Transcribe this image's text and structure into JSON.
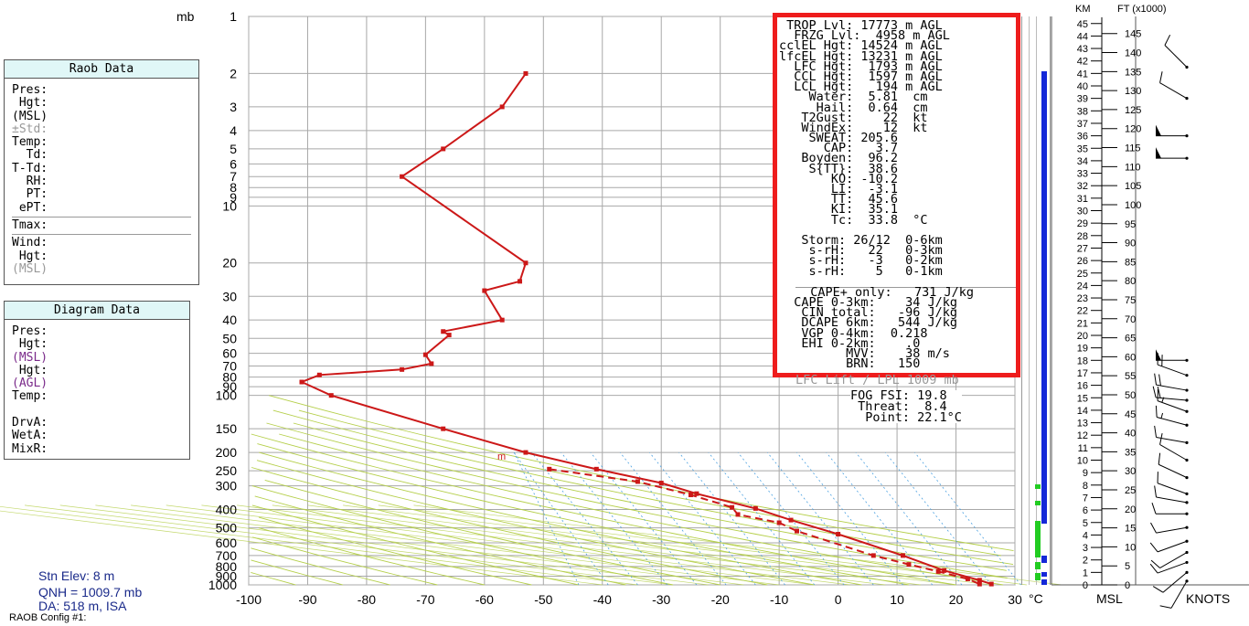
{
  "raob_panel": {
    "title": "Raob Data",
    "rows": [
      "Pres:",
      " Hgt:",
      "(MSL)",
      "±Std:",
      "Temp:",
      "  Td:",
      "T-Td:",
      "  RH:",
      "  PT:",
      " ePT:"
    ],
    "tmax": "Tmax:",
    "wind_rows": [
      "Wind:",
      " Hgt:",
      "(MSL)"
    ]
  },
  "diagram_panel": {
    "title": "Diagram Data",
    "rows": [
      "Pres:",
      " Hgt:",
      "(MSL)",
      " Hgt:",
      "(AGL)",
      "Temp:",
      "",
      "DrvA:",
      "WetA:",
      "MixR:"
    ]
  },
  "station": {
    "elev": "Stn Elev: 8 m",
    "qnh": "QNH = 1009.7 mb",
    "da": "DA: 518 m, ISA",
    "config": "RAOB Config #1:"
  },
  "indices": {
    "rows": [
      " TROP Lvl: 17773 m AGL",
      "  FRZG Lvl:  4958 m AGL",
      "cclEL Hgt: 14524 m AGL",
      "lfcEL Hgt: 13231 m AGL",
      "  LFC Hgt:  1793 m AGL",
      "  CCL Hgt:  1597 m AGL",
      "  LCL Hgt:   194 m AGL",
      "    Water:  5.81  cm",
      "     Hail:  0.64  cm",
      "   T2Gust:    22  kt",
      "   WindEx:    12  kt",
      "    SWEAT: 205.6",
      "      CAP:   3.7",
      "   Boyden:  96.2",
      "    S{TT}:  38.6",
      "       KO: -10.2",
      "       LI:  -3.1",
      "       TT:  45.6",
      "       KI:  35.1",
      "       Tc:  33.8  °C",
      "",
      "   Storm: 26/12  0-6km",
      "    s-rH:   22   0-3km",
      "    s-rH:   -3   0-2km",
      "    s-rH:    5   0-1km",
      "",
      "  CAPE+ only:   731 J/kg",
      "  CAPE 0-3km:    34 J/kg",
      "   CIN total:   -96 J/kg",
      "   DCAPE 6km:   544 J/kg",
      "   VGP 0-4km:  0.218",
      "   EHI 0-2km:    .0",
      "         MVV:    38 m/s",
      "         BRN:   150"
    ]
  },
  "lfc_lift": "LFC Lift / LPL 1009 mb",
  "fog": {
    "rows": [
      "FOG FSI: 19.8",
      " Threat:  8.4",
      "  Point: 22.1°C"
    ]
  },
  "mixing_marker": "m",
  "right_axes": {
    "km_title": "KM",
    "ft_title": "FT (x1000)",
    "msl_label": "MSL",
    "knots_label": "KNOTS",
    "km_ticks": [
      0,
      1,
      2,
      3,
      4,
      5,
      6,
      7,
      8,
      9,
      10,
      11,
      12,
      13,
      14,
      15,
      16,
      17,
      18,
      19,
      20,
      21,
      22,
      23,
      24,
      25,
      26,
      27,
      28,
      29,
      30,
      31,
      32,
      33,
      34,
      35,
      36,
      37,
      38,
      39,
      40,
      41,
      42,
      43,
      44,
      45
    ],
    "ft_ticks": [
      0,
      5,
      10,
      15,
      20,
      25,
      30,
      35,
      40,
      45,
      50,
      55,
      60,
      65,
      70,
      75,
      80,
      85,
      90,
      95,
      100,
      105,
      110,
      115,
      120,
      125,
      130,
      135,
      140,
      145
    ],
    "wind_barbs": [
      {
        "km": 41.5,
        "dir": 315,
        "speed": 10
      },
      {
        "km": 39.0,
        "dir": 300,
        "speed": 10
      },
      {
        "km": 36.0,
        "dir": 270,
        "speed": 50
      },
      {
        "km": 34.2,
        "dir": 270,
        "speed": 50
      },
      {
        "km": 18.0,
        "dir": 270,
        "speed": 50
      },
      {
        "km": 16.8,
        "dir": 290,
        "speed": 20
      },
      {
        "km": 15.6,
        "dir": 280,
        "speed": 20
      },
      {
        "km": 14.8,
        "dir": 275,
        "speed": 20
      },
      {
        "km": 13.9,
        "dir": 290,
        "speed": 15
      },
      {
        "km": 12.8,
        "dir": 285,
        "speed": 15
      },
      {
        "km": 11.4,
        "dir": 280,
        "speed": 10
      },
      {
        "km": 10.0,
        "dir": 300,
        "speed": 10
      },
      {
        "km": 8.6,
        "dir": 295,
        "speed": 10
      },
      {
        "km": 7.3,
        "dir": 290,
        "speed": 10
      },
      {
        "km": 6.6,
        "dir": 280,
        "speed": 10
      },
      {
        "km": 5.7,
        "dir": 270,
        "speed": 10
      },
      {
        "km": 4.6,
        "dir": 260,
        "speed": 10
      },
      {
        "km": 3.5,
        "dir": 250,
        "speed": 10
      },
      {
        "km": 2.6,
        "dir": 240,
        "speed": 10
      },
      {
        "km": 1.8,
        "dir": 250,
        "speed": 10
      },
      {
        "km": 1.0,
        "dir": 230,
        "speed": 10
      },
      {
        "km": 0.3,
        "dir": 210,
        "speed": 10
      }
    ]
  },
  "colors": {
    "temp": "#cc1818",
    "grid": "#a8a8a8",
    "dry_adiabat": "#b5cf4a",
    "mix_ratio": "#4aa0e0",
    "highlight": "#ee1c1c",
    "bar_blue": "#1428d8",
    "bar_green": "#22cc22"
  },
  "chart_data": {
    "type": "line",
    "title": "",
    "x_unit": "°C",
    "xlim": [
      -100,
      30
    ],
    "y_unit": "mb",
    "y_scale": "log-reversed",
    "ylim": [
      1000,
      1
    ],
    "x_ticks": [
      -100,
      -90,
      -80,
      -70,
      -60,
      -50,
      -40,
      -30,
      -20,
      -10,
      0,
      10,
      20,
      30
    ],
    "y_ticks": [
      1,
      2,
      3,
      4,
      5,
      6,
      7,
      8,
      9,
      10,
      20,
      30,
      40,
      50,
      60,
      70,
      80,
      90,
      100,
      150,
      200,
      250,
      300,
      400,
      500,
      600,
      700,
      800,
      900,
      1000
    ],
    "series": [
      {
        "style": "solid",
        "points": [
          [
            -53,
            2
          ],
          [
            -57,
            3
          ],
          [
            -67,
            5
          ],
          [
            -74,
            7
          ],
          [
            -53,
            20
          ],
          [
            -54,
            25
          ],
          [
            -60,
            28
          ],
          [
            -57,
            40
          ],
          [
            -67,
            46
          ],
          [
            -66,
            48
          ],
          [
            -70,
            61
          ],
          [
            -69,
            68
          ],
          [
            -74,
            73
          ],
          [
            -88,
            78
          ],
          [
            -91,
            85
          ],
          [
            -86,
            100
          ],
          [
            -67,
            150
          ],
          [
            -53,
            200
          ],
          [
            -41,
            245
          ],
          [
            -30,
            290
          ],
          [
            -24,
            330
          ],
          [
            -14,
            395
          ],
          [
            -8,
            455
          ],
          [
            0,
            540
          ],
          [
            11,
            700
          ],
          [
            18,
            840
          ],
          [
            24,
            945
          ],
          [
            26,
            990
          ]
        ]
      },
      {
        "style": "dashed",
        "points": [
          [
            -49,
            245
          ],
          [
            -34,
            285
          ],
          [
            -25,
            335
          ],
          [
            -18,
            390
          ],
          [
            -17,
            425
          ],
          [
            -10,
            470
          ],
          [
            -7,
            520
          ],
          [
            6,
            700
          ],
          [
            12,
            780
          ],
          [
            17,
            850
          ],
          [
            22,
            930
          ],
          [
            24,
            990
          ]
        ]
      }
    ]
  }
}
